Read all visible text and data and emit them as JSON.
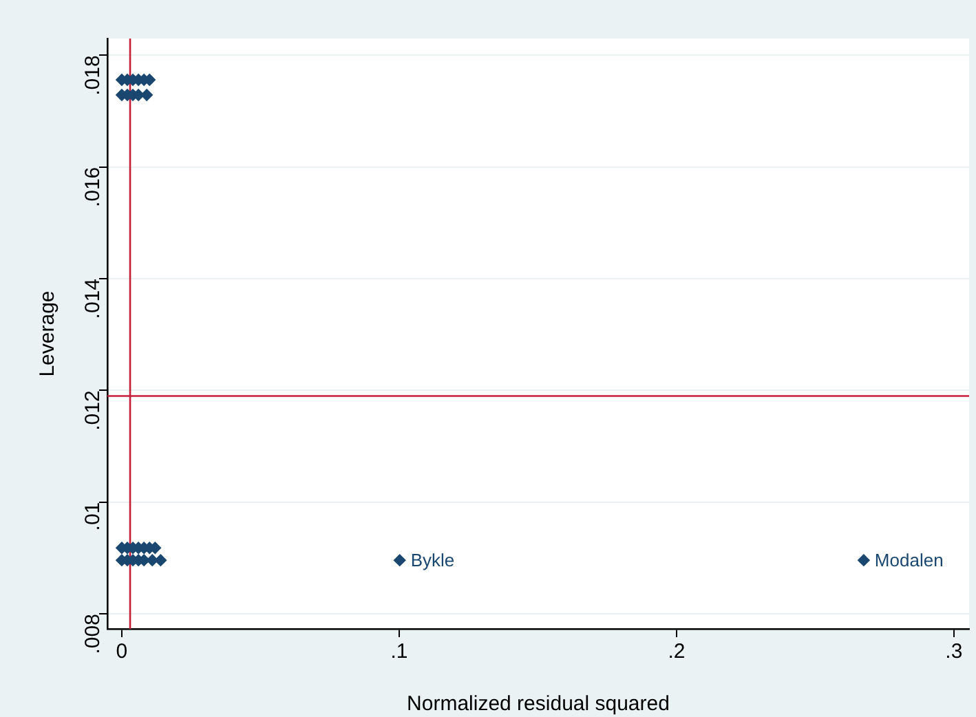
{
  "chart_data": {
    "type": "scatter",
    "xlabel": "Normalized residual squared",
    "ylabel": "Leverage",
    "series": [
      {
        "color": "#1a476f",
        "x": [
          0,
          0.002,
          0.004,
          0.006,
          0.008,
          0.01,
          0,
          0.002,
          0.004,
          0.006,
          0.009,
          0,
          0.002,
          0.004,
          0.006,
          0.008,
          0.01,
          0.012,
          0,
          0.002,
          0.004,
          0.006,
          0.008,
          0.011,
          0.014,
          0.1002,
          0.2675
        ],
        "values": [
          0.01756,
          0.01756,
          0.01756,
          0.01756,
          0.01756,
          0.01756,
          0.01729,
          0.01729,
          0.01729,
          0.01729,
          0.01729,
          0.00918,
          0.00918,
          0.00918,
          0.00918,
          0.00918,
          0.00918,
          0.00918,
          0.00896,
          0.00896,
          0.00896,
          0.00896,
          0.00896,
          0.00896,
          0.00896,
          0.00896,
          0.00896
        ]
      }
    ],
    "xlim": [
      -0.0052,
      0.3055
    ],
    "xticks": [
      0,
      {
        "value": 0.1,
        "label": ".1"
      },
      {
        "value": 0.2,
        "label": ".2"
      },
      {
        "value": 0.3,
        "label": ".3"
      }
    ],
    "ylim": [
      0.00773,
      0.0183
    ],
    "yticks": [
      {
        "value": 0.008,
        "label": ".008"
      },
      {
        "value": 0.01,
        "label": ".01"
      },
      {
        "value": 0.012,
        "label": ".012"
      },
      {
        "value": 0.014,
        "label": ".014"
      },
      {
        "value": 0.016,
        "label": ".016"
      },
      {
        "value": 0.018,
        "label": ".018"
      }
    ],
    "ref_lines": [
      {
        "axis": "x",
        "value": 0.003,
        "color": "#c41e3a"
      },
      {
        "axis": "y",
        "value": 0.0119,
        "color": "#c41e3a"
      }
    ],
    "annotations": [
      {
        "text": "Bykle",
        "x": 0.1002,
        "y": 0.00896
      },
      {
        "text": "Modalen",
        "x": 0.2675,
        "y": 0.00896
      }
    ],
    "grid": "y",
    "marker": "diamond"
  }
}
